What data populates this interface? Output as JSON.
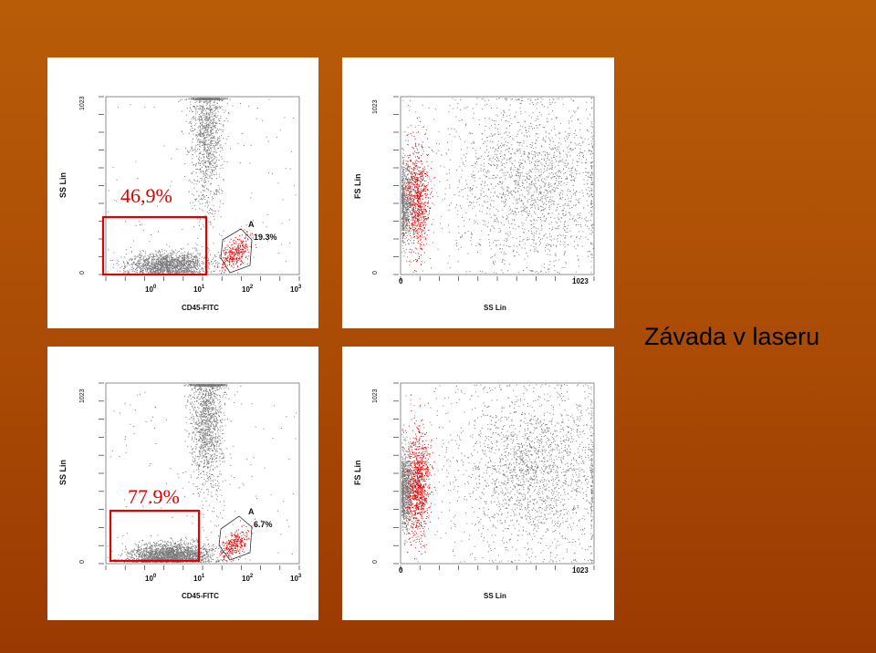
{
  "slide": {
    "title": "Závada v laseru"
  },
  "colors": {
    "background_top": "#b85c08",
    "background_bottom": "#9a3a02",
    "events_gray": "#7a7a7a",
    "events_gated": "#e60000",
    "gate_box": "#e00000"
  },
  "chart_data": [
    {
      "id": "top-left",
      "type": "scatter",
      "xlabel": "CD45-FITC",
      "ylabel": "SS Lin",
      "x_scale": "log",
      "xlim": [
        0.1,
        1000
      ],
      "x_ticks": [
        "10^0",
        "10^1",
        "10^2",
        "10^3"
      ],
      "y_ticks": [
        "0",
        "1023"
      ],
      "ylim": [
        0,
        1023
      ],
      "gate": {
        "name": "A",
        "percent": "19.3%"
      },
      "box_annotation": "46,9%",
      "populations": [
        {
          "color": "gray",
          "x_center": 2.0,
          "y_center": 60,
          "count_shown": 1500
        },
        {
          "color": "gray",
          "x_center": 12.0,
          "y_center": 880,
          "count_shown": 1400
        },
        {
          "color": "red",
          "x_center": 45.0,
          "y_center": 120,
          "count_shown": 300
        }
      ]
    },
    {
      "id": "top-right",
      "type": "scatter",
      "xlabel": "SS Lin",
      "ylabel": "FS Lin",
      "x_scale": "linear",
      "xlim": [
        0,
        1023
      ],
      "ylim": [
        0,
        1023
      ],
      "x_ticks": [
        "0",
        "1023"
      ],
      "y_ticks": [
        "0",
        "1023"
      ],
      "populations": [
        {
          "color": "gray",
          "x_center": 20,
          "y_center": 420,
          "count_shown": 700
        },
        {
          "color": "red",
          "x_center": 90,
          "y_center": 430,
          "count_shown": 700
        },
        {
          "color": "gray",
          "x_center": 700,
          "y_center": 520,
          "count_shown": 1600
        }
      ]
    },
    {
      "id": "bottom-left",
      "type": "scatter",
      "xlabel": "CD45-FITC",
      "ylabel": "SS Lin",
      "x_scale": "log",
      "xlim": [
        0.1,
        1000
      ],
      "x_ticks": [
        "10^0",
        "10^1",
        "10^2",
        "10^3"
      ],
      "y_ticks": [
        "0",
        "1023"
      ],
      "ylim": [
        0,
        1023
      ],
      "gate": {
        "name": "A",
        "percent": "6.7%"
      },
      "box_annotation": "77.9%",
      "populations": [
        {
          "color": "gray",
          "x_center": 2.0,
          "y_center": 45,
          "count_shown": 2200
        },
        {
          "color": "gray",
          "x_center": 12.0,
          "y_center": 860,
          "count_shown": 1600
        },
        {
          "color": "red",
          "x_center": 45.0,
          "y_center": 110,
          "count_shown": 280
        }
      ]
    },
    {
      "id": "bottom-right",
      "type": "scatter",
      "xlabel": "SS Lin",
      "ylabel": "FS Lin",
      "x_scale": "linear",
      "xlim": [
        0,
        1023
      ],
      "ylim": [
        0,
        1023
      ],
      "x_ticks": [
        "0",
        "1023"
      ],
      "y_ticks": [
        "0",
        "1023"
      ],
      "populations": [
        {
          "color": "gray",
          "x_center": 25,
          "y_center": 420,
          "count_shown": 900
        },
        {
          "color": "red",
          "x_center": 95,
          "y_center": 450,
          "count_shown": 900
        },
        {
          "color": "gray",
          "x_center": 720,
          "y_center": 520,
          "count_shown": 1800
        }
      ]
    }
  ]
}
